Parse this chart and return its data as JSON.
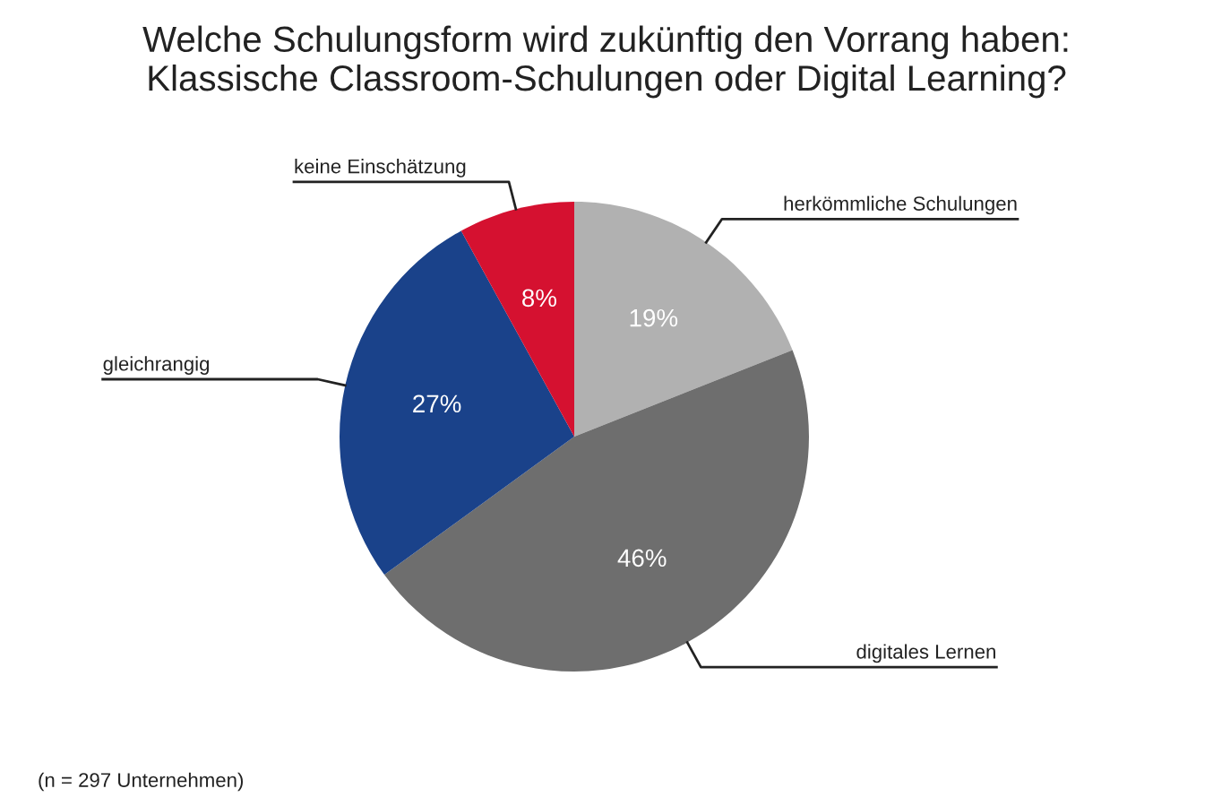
{
  "chart_data": {
    "type": "pie",
    "title": "Welche Schulungsform wird zukünftig den Vorrang haben:\nKlassische Classroom-Schulungen oder Digital Learning?",
    "categories": [
      "herkömmliche Schulungen",
      "digitales Lernen",
      "gleichrangig",
      "keine Einschätzung"
    ],
    "values": [
      19,
      46,
      27,
      8
    ],
    "colors": [
      "#b1b1b1",
      "#6e6e6e",
      "#1a428a",
      "#d51130"
    ],
    "value_labels": [
      "19%",
      "46%",
      "27%",
      "8%"
    ],
    "annotations": [
      "(n = 297 Unternehmen)"
    ]
  }
}
